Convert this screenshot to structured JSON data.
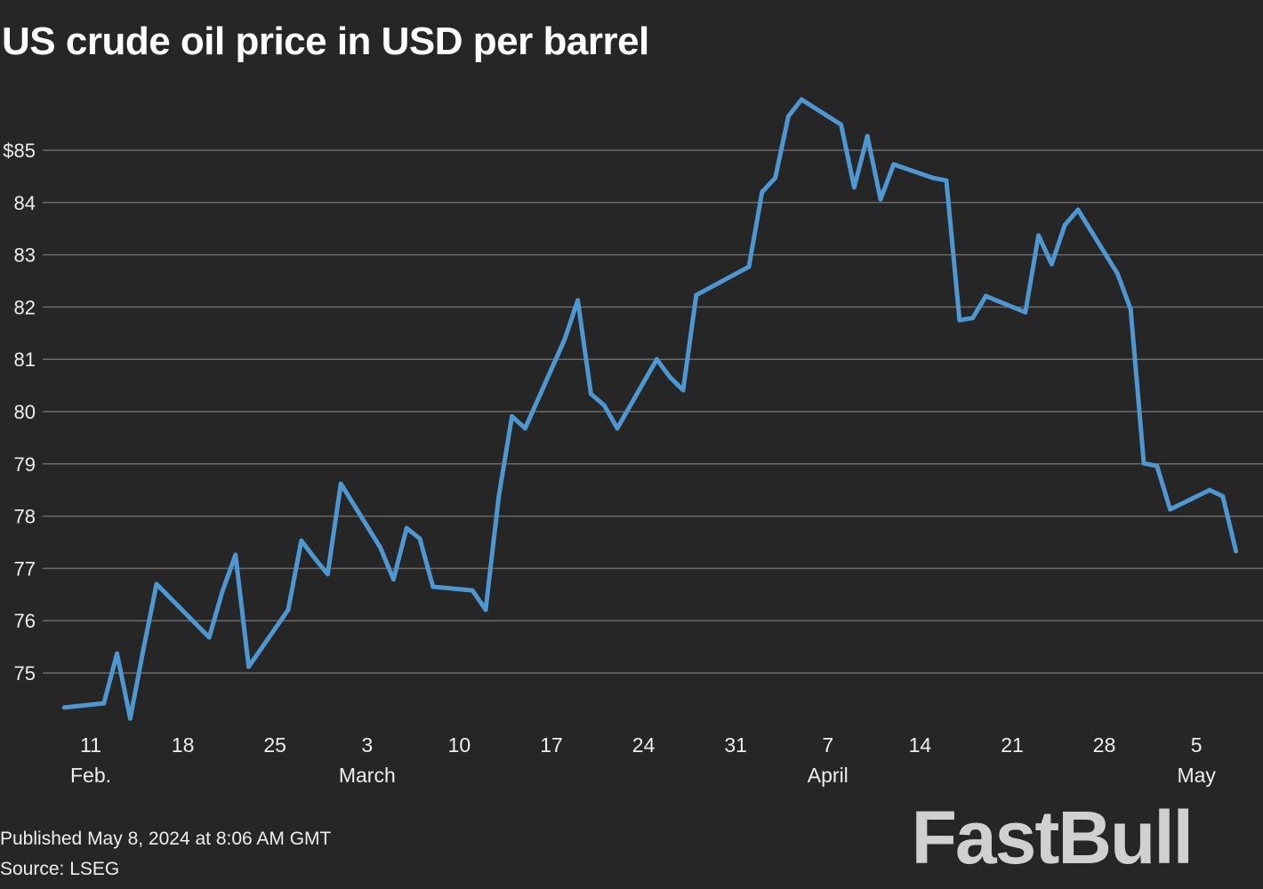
{
  "title": "US crude oil price in USD per barrel",
  "footer": {
    "published": "Published May 8, 2024 at 8:06 AM GMT",
    "source": "Source: LSEG"
  },
  "watermark": "FastBull",
  "colors": {
    "background": "#262626",
    "line": "#4e97d1",
    "grid": "#6a6a6a",
    "text": "#ffffff"
  },
  "chart_data": {
    "type": "line",
    "title": "US crude oil price in USD per barrel",
    "xlabel": "",
    "ylabel": "",
    "ylim": [
      74,
      86.2
    ],
    "xlim": [
      "2024-02-07",
      "2024-05-09"
    ],
    "grid": true,
    "y_ticks": [
      {
        "value": 75,
        "label": "75"
      },
      {
        "value": 76,
        "label": "76"
      },
      {
        "value": 77,
        "label": "77"
      },
      {
        "value": 78,
        "label": "78"
      },
      {
        "value": 79,
        "label": "79"
      },
      {
        "value": 80,
        "label": "80"
      },
      {
        "value": 81,
        "label": "81"
      },
      {
        "value": 82,
        "label": "82"
      },
      {
        "value": 83,
        "label": "83"
      },
      {
        "value": 84,
        "label": "84"
      },
      {
        "value": 85,
        "label": "$85"
      }
    ],
    "x_ticks": [
      {
        "date": "2024-02-11",
        "label": "11",
        "month": "Feb."
      },
      {
        "date": "2024-02-18",
        "label": "18"
      },
      {
        "date": "2024-02-25",
        "label": "25"
      },
      {
        "date": "2024-03-03",
        "label": "3",
        "month": "March"
      },
      {
        "date": "2024-03-10",
        "label": "10"
      },
      {
        "date": "2024-03-17",
        "label": "17"
      },
      {
        "date": "2024-03-24",
        "label": "24"
      },
      {
        "date": "2024-03-31",
        "label": "31"
      },
      {
        "date": "2024-04-07",
        "label": "7",
        "month": "April"
      },
      {
        "date": "2024-04-14",
        "label": "14"
      },
      {
        "date": "2024-04-21",
        "label": "21"
      },
      {
        "date": "2024-04-28",
        "label": "28"
      },
      {
        "date": "2024-05-05",
        "label": "5",
        "month": "May"
      }
    ],
    "series": [
      {
        "x": [
          "2024-02-09",
          "2024-02-12",
          "2024-02-13",
          "2024-02-14",
          "2024-02-15",
          "2024-02-16",
          "2024-02-20",
          "2024-02-21",
          "2024-02-22",
          "2024-02-23",
          "2024-02-26",
          "2024-02-27",
          "2024-02-28",
          "2024-02-29",
          "2024-03-01",
          "2024-03-04",
          "2024-03-05",
          "2024-03-06",
          "2024-03-07",
          "2024-03-08",
          "2024-03-11",
          "2024-03-12",
          "2024-03-13",
          "2024-03-14",
          "2024-03-15",
          "2024-03-18",
          "2024-03-19",
          "2024-03-20",
          "2024-03-21",
          "2024-03-22",
          "2024-03-25",
          "2024-03-26",
          "2024-03-27",
          "2024-03-28",
          "2024-04-01",
          "2024-04-02",
          "2024-04-03",
          "2024-04-04",
          "2024-04-05",
          "2024-04-08",
          "2024-04-09",
          "2024-04-10",
          "2024-04-11",
          "2024-04-12",
          "2024-04-15",
          "2024-04-16",
          "2024-04-17",
          "2024-04-18",
          "2024-04-19",
          "2024-04-22",
          "2024-04-23",
          "2024-04-24",
          "2024-04-25",
          "2024-04-26",
          "2024-04-29",
          "2024-04-30",
          "2024-05-01",
          "2024-05-02",
          "2024-05-03",
          "2024-05-06",
          "2024-05-07",
          "2024-05-08"
        ],
        "values": [
          74.34,
          74.42,
          75.37,
          74.13,
          75.45,
          76.7,
          75.68,
          76.56,
          77.26,
          75.12,
          76.21,
          77.53,
          77.2,
          76.89,
          78.62,
          77.4,
          76.79,
          77.77,
          77.57,
          76.65,
          76.58,
          76.21,
          78.38,
          79.91,
          79.68,
          81.38,
          82.13,
          80.34,
          80.12,
          79.68,
          81.0,
          80.66,
          80.41,
          82.23,
          82.77,
          84.2,
          84.47,
          85.65,
          85.97,
          85.49,
          84.29,
          85.27,
          84.06,
          84.73,
          84.47,
          84.42,
          81.75,
          81.79,
          82.21,
          81.9,
          83.37,
          82.82,
          83.57,
          83.86,
          82.64,
          81.96,
          79.01,
          78.96,
          78.13,
          78.5,
          78.38,
          77.33
        ]
      }
    ]
  }
}
